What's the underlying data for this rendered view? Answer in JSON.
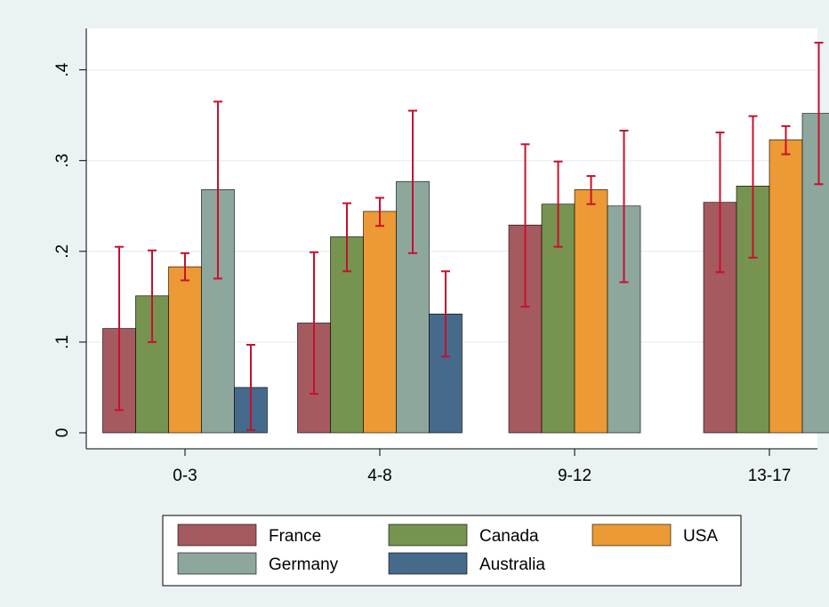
{
  "chart_data": {
    "type": "bar",
    "title": "",
    "xlabel": "",
    "ylabel": "",
    "categories": [
      "0-3",
      "4-8",
      "9-12",
      "13-17"
    ],
    "ylim": [
      0,
      0.45
    ],
    "yticks": [
      {
        "value": 0,
        "label": "0"
      },
      {
        "value": 0.1,
        "label": ".1"
      },
      {
        "value": 0.2,
        "label": ".2"
      },
      {
        "value": 0.3,
        "label": ".3"
      },
      {
        "value": 0.4,
        "label": ".4"
      }
    ],
    "grid": true,
    "legend_position": "bottom",
    "error_bar_color": "#c8102e",
    "series": [
      {
        "name": "France",
        "color": "#a55a5f",
        "values": [
          0.115,
          0.121,
          0.229,
          0.254
        ],
        "err_low": [
          0.025,
          0.043,
          0.139,
          0.177
        ],
        "err_high": [
          0.205,
          0.199,
          0.318,
          0.331
        ]
      },
      {
        "name": "Canada",
        "color": "#769350",
        "values": [
          0.151,
          0.216,
          0.252,
          0.272
        ],
        "err_low": [
          0.1,
          0.178,
          0.205,
          0.193
        ],
        "err_high": [
          0.201,
          0.253,
          0.299,
          0.349
        ]
      },
      {
        "name": "USA",
        "color": "#ec9a35",
        "values": [
          0.183,
          0.244,
          0.268,
          0.323
        ],
        "err_low": [
          0.168,
          0.228,
          0.252,
          0.307
        ],
        "err_high": [
          0.198,
          0.259,
          0.283,
          0.338
        ]
      },
      {
        "name": "Germany",
        "color": "#8da79d",
        "values": [
          0.268,
          0.277,
          0.25,
          0.352
        ],
        "err_low": [
          0.17,
          0.198,
          0.166,
          0.274
        ],
        "err_high": [
          0.365,
          0.355,
          0.333,
          0.43
        ]
      },
      {
        "name": "Australia",
        "color": "#466a8b",
        "values": [
          0.05,
          0.131,
          null,
          null
        ],
        "err_low": [
          0.003,
          0.084,
          null,
          null
        ],
        "err_high": [
          0.097,
          0.178,
          null,
          null
        ]
      }
    ]
  }
}
